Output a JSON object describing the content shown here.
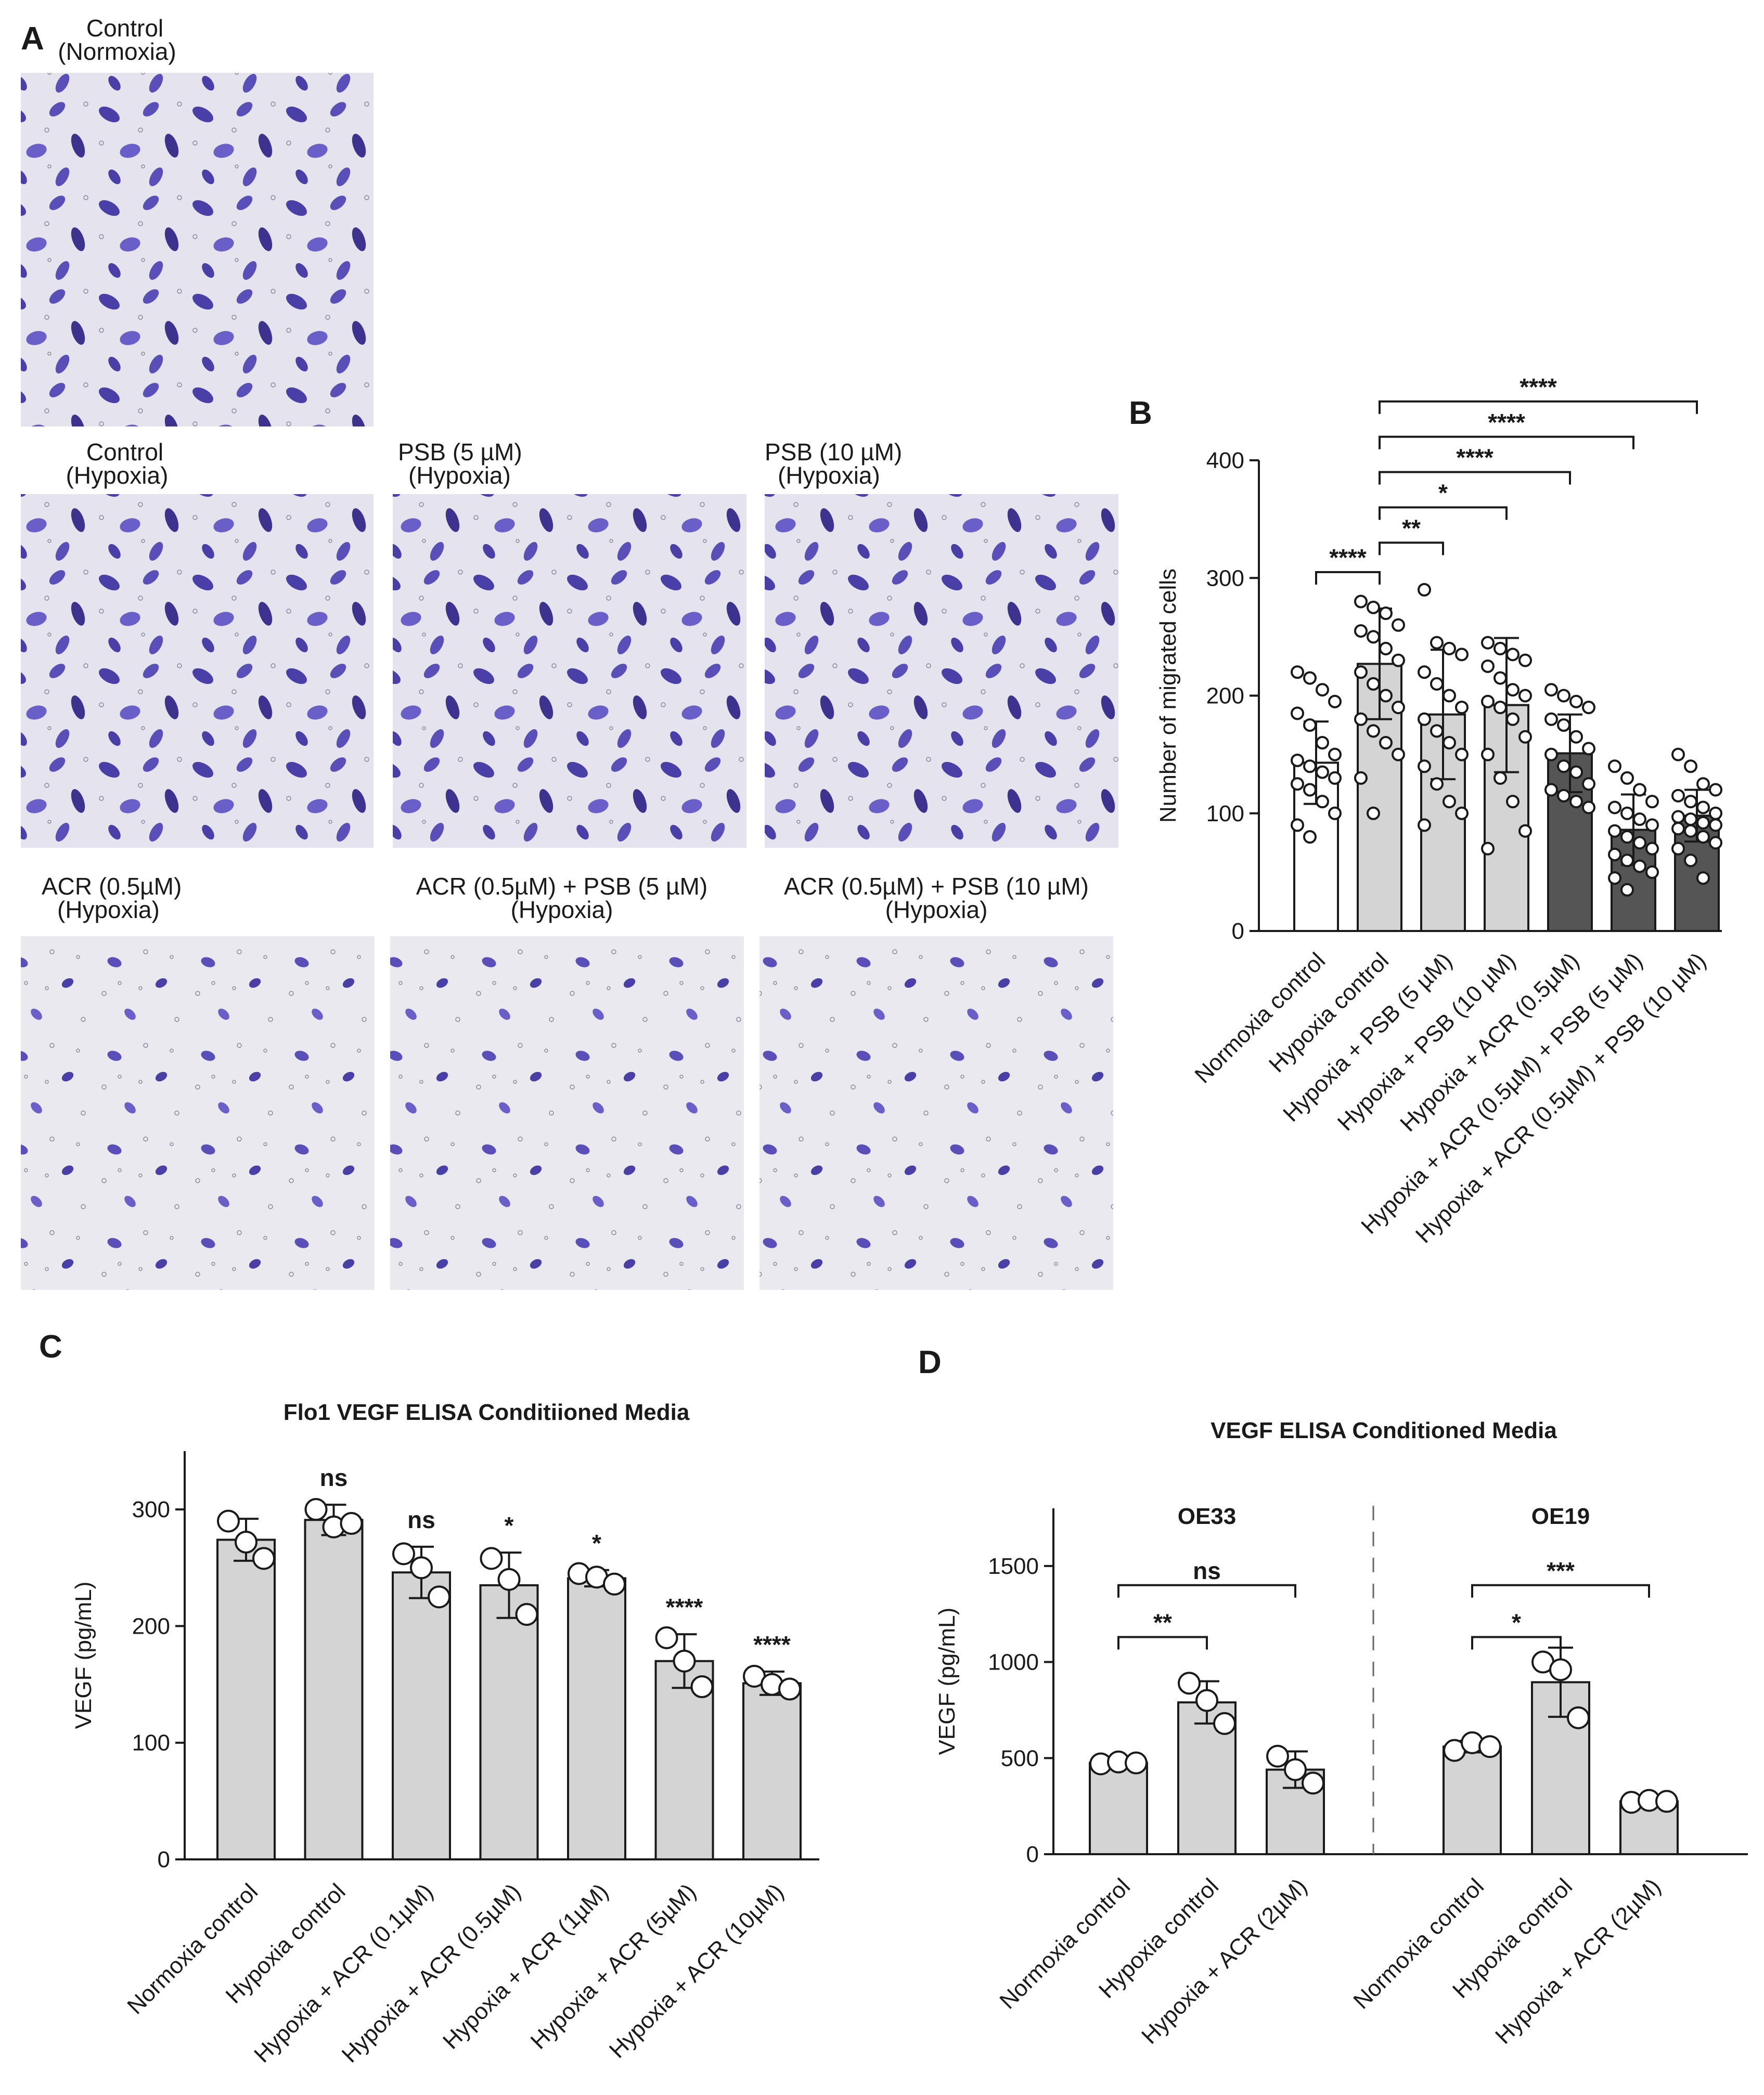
{
  "panel_a": {
    "label": "A",
    "images": [
      {
        "line1": "Control",
        "line2": "(Normoxia)"
      },
      {
        "line1": "Control",
        "line2": "(Hypoxia)"
      },
      {
        "line1": "PSB (5 µM)",
        "line2": "(Hypoxia)"
      },
      {
        "line1": "PSB (10 µM)",
        "line2": "(Hypoxia)"
      },
      {
        "line1": "ACR (0.5µM)",
        "line2": "(Hypoxia)"
      },
      {
        "line1": "ACR (0.5µM) + PSB (5 µM)",
        "line2": "(Hypoxia)"
      },
      {
        "line1": "ACR (0.5µM) + PSB (10 µM)",
        "line2": "(Hypoxia)"
      }
    ]
  },
  "panel_labels": {
    "B": "B",
    "C": "C",
    "D": "D"
  },
  "chart_data": [
    {
      "panel": "B",
      "type": "bar",
      "ylabel": "Number of migrated cells",
      "ylim": [
        0,
        400
      ],
      "yticks": [
        0,
        100,
        200,
        300,
        400
      ],
      "categories": [
        "Normoxia control",
        "Hypoxia control",
        "Hypoxia + PSB (5 µM)",
        "Hypoxia + PSB (10 µM)",
        "Hypoxia + ACR (0.5µM)",
        "Hypoxia + ACR (0.5µM) + PSB (5 µM)",
        "Hypoxia + ACR (0.5µM) + PSB (10 µM)"
      ],
      "values": [
        143,
        227,
        184,
        192,
        151,
        86,
        98
      ],
      "errors": [
        35,
        47,
        55,
        57,
        33,
        30,
        22
      ],
      "bar_colors": [
        "#ffffff",
        "#d4d4d4",
        "#d4d4d4",
        "#d4d4d4",
        "#555555",
        "#555555",
        "#555555"
      ],
      "points": [
        [
          220,
          215,
          205,
          195,
          185,
          175,
          160,
          150,
          145,
          140,
          135,
          130,
          125,
          120,
          110,
          100,
          90,
          80
        ],
        [
          280,
          275,
          270,
          260,
          255,
          250,
          240,
          230,
          220,
          210,
          200,
          190,
          180,
          170,
          160,
          150,
          130,
          100
        ],
        [
          290,
          245,
          240,
          235,
          220,
          210,
          200,
          190,
          180,
          170,
          160,
          150,
          140,
          125,
          110,
          100,
          90
        ],
        [
          245,
          240,
          235,
          230,
          225,
          215,
          205,
          200,
          195,
          190,
          180,
          165,
          150,
          130,
          110,
          85,
          70
        ],
        [
          205,
          200,
          195,
          190,
          180,
          175,
          165,
          155,
          150,
          140,
          135,
          125,
          120,
          115,
          110,
          105
        ],
        [
          140,
          130,
          120,
          110,
          105,
          100,
          95,
          90,
          85,
          80,
          75,
          70,
          65,
          60,
          55,
          50,
          45,
          35
        ],
        [
          150,
          140,
          125,
          120,
          115,
          110,
          105,
          100,
          97,
          95,
          92,
          90,
          87,
          85,
          80,
          75,
          70,
          60,
          45
        ]
      ],
      "comparisons": [
        {
          "from": 0,
          "to": 1,
          "label": "****"
        },
        {
          "from": 1,
          "to": 2,
          "label": "**"
        },
        {
          "from": 1,
          "to": 3,
          "label": "*"
        },
        {
          "from": 1,
          "to": 4,
          "label": "****"
        },
        {
          "from": 1,
          "to": 5,
          "label": "****"
        },
        {
          "from": 1,
          "to": 6,
          "label": "****"
        }
      ]
    },
    {
      "panel": "C",
      "type": "bar",
      "title": "Flo1 VEGF ELISA Conditiioned Media",
      "ylabel": "VEGF (pg/mL)",
      "ylim": [
        0,
        350
      ],
      "yticks": [
        0,
        100,
        200,
        300
      ],
      "categories": [
        "Normoxia control",
        "Hypoxia control",
        "Hypoxia + ACR (0.1µM)",
        "Hypoxia + ACR (0.5µM)",
        "Hypoxia + ACR (1µM)",
        "Hypoxia + ACR (5µM)",
        "Hypoxia + ACR (10µM)"
      ],
      "values": [
        274,
        291,
        246,
        235,
        241,
        170,
        151
      ],
      "errors": [
        18,
        13,
        22,
        28,
        7,
        23,
        10
      ],
      "points": [
        [
          290,
          272,
          258
        ],
        [
          300,
          285,
          288
        ],
        [
          262,
          250,
          225
        ],
        [
          258,
          240,
          210
        ],
        [
          245,
          242,
          236
        ],
        [
          190,
          170,
          148
        ],
        [
          157,
          150,
          146
        ]
      ],
      "significance": [
        "",
        "ns",
        "ns",
        "*",
        "*",
        "****",
        "****"
      ]
    },
    {
      "panel": "D",
      "type": "bar",
      "title": "VEGF ELISA Conditioned Media",
      "ylabel": "VEGF (pg/mL)",
      "ylim": [
        0,
        1800
      ],
      "yticks": [
        0,
        500,
        1000,
        1500
      ],
      "groups": [
        {
          "name": "OE33",
          "categories": [
            "Normoxia control",
            "Hypoxia control",
            "Hypoxia + ACR (2µM)"
          ],
          "values": [
            475,
            790,
            440
          ],
          "errors": [
            10,
            110,
            95
          ],
          "points": [
            [
              470,
              480,
              475
            ],
            [
              890,
              800,
              680
            ],
            [
              510,
              440,
              370
            ]
          ],
          "comparisons": [
            {
              "from": 0,
              "to": 1,
              "label": "**"
            },
            {
              "from": 0,
              "to": 2,
              "label": "ns"
            }
          ]
        },
        {
          "name": "OE19",
          "categories": [
            "Normoxia control",
            "Hypoxia control",
            "Hypoxia + ACR (2µM)"
          ],
          "values": [
            560,
            895,
            275
          ],
          "errors": [
            30,
            180,
            8
          ],
          "points": [
            [
              540,
              580,
              560
            ],
            [
              1000,
              960,
              710
            ],
            [
              270,
              280,
              275
            ]
          ],
          "comparisons": [
            {
              "from": 0,
              "to": 1,
              "label": "*"
            },
            {
              "from": 0,
              "to": 2,
              "label": "***"
            }
          ]
        }
      ]
    }
  ]
}
